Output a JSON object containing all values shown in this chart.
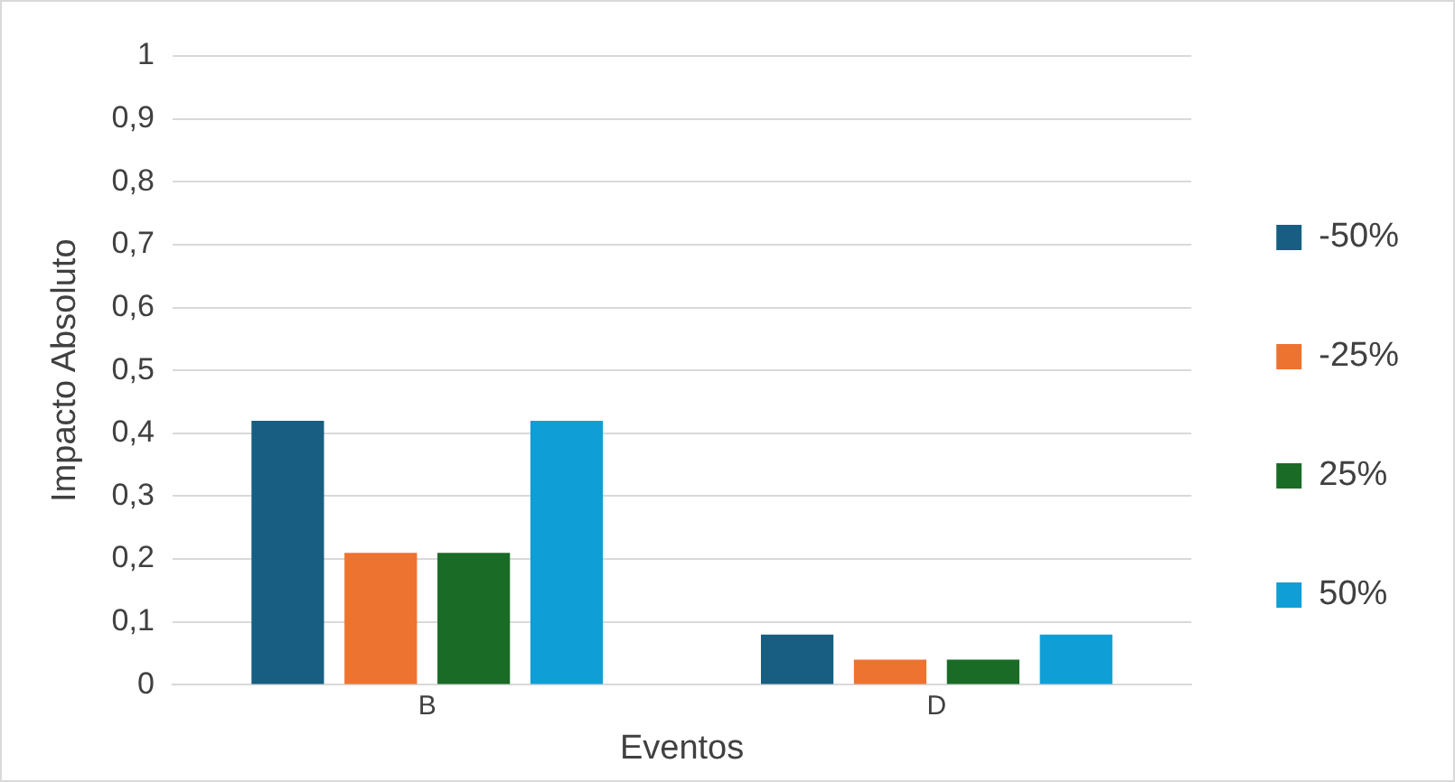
{
  "chart_data": {
    "type": "bar",
    "xlabel": "Eventos",
    "ylabel": "Impacto Absoluto",
    "categories": [
      "B",
      "D"
    ],
    "series": [
      {
        "name": "-50%",
        "color": "#175e82",
        "values": [
          0.42,
          0.08
        ]
      },
      {
        "name": "-25%",
        "color": "#ed7331",
        "values": [
          0.21,
          0.04
        ]
      },
      {
        "name": "25%",
        "color": "#1a6b26",
        "values": [
          0.21,
          0.04
        ]
      },
      {
        "name": "50%",
        "color": "#0f9ed5",
        "values": [
          0.42,
          0.08
        ]
      }
    ],
    "ylim": [
      0,
      1
    ],
    "yticks": [
      0,
      {
        "value": 0.1,
        "label": "0,1"
      },
      {
        "value": 0.2,
        "label": "0,2"
      },
      {
        "value": 0.3,
        "label": "0,3"
      },
      {
        "value": 0.4,
        "label": "0,4"
      },
      {
        "value": 0.5,
        "label": "0,5"
      },
      {
        "value": 0.6,
        "label": "0,6"
      },
      {
        "value": 0.7,
        "label": "0,7"
      },
      {
        "value": 0.8,
        "label": "0,8"
      },
      {
        "value": 0.9,
        "label": "0,9"
      },
      1
    ],
    "grid": "y",
    "legend": "right"
  }
}
